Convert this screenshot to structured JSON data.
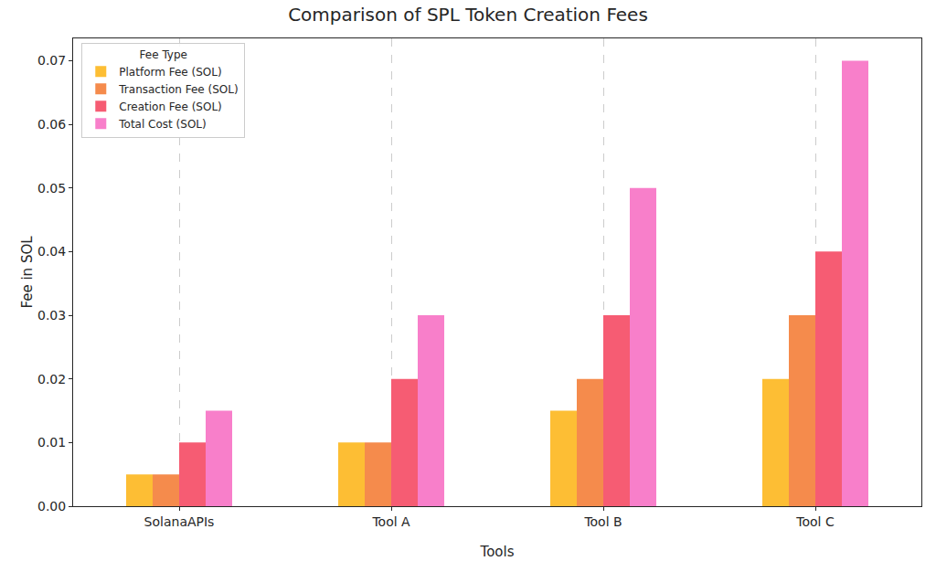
{
  "chart_data": {
    "type": "bar",
    "title": "Comparison of SPL Token Creation Fees",
    "x_label": "Tools",
    "y_label": "Fee in SOL",
    "legend_title": "Fee Type",
    "categories": [
      "SolanaAPIs",
      "Tool A",
      "Tool B",
      "Tool C"
    ],
    "series": [
      {
        "name": "Platform Fee (SOL)",
        "color": "#FDBE34",
        "values": [
          0.005,
          0.01,
          0.015,
          0.02
        ]
      },
      {
        "name": "Transaction Fee (SOL)",
        "color": "#F58B4C",
        "values": [
          0.005,
          0.01,
          0.02,
          0.03
        ]
      },
      {
        "name": "Creation Fee (SOL)",
        "color": "#F65C73",
        "values": [
          0.01,
          0.02,
          0.03,
          0.04
        ]
      },
      {
        "name": "Total Cost (SOL)",
        "color": "#F87FCA",
        "values": [
          0.015,
          0.03,
          0.05,
          0.07
        ]
      }
    ],
    "ylim": [
      0,
      0.0735
    ],
    "yticks": [
      {
        "value": 0,
        "label": "0.00"
      },
      {
        "value": 0.01,
        "label": "0.01"
      },
      {
        "value": 0.02,
        "label": "0.02"
      },
      {
        "value": 0.03,
        "label": "0.03"
      },
      {
        "value": 0.04,
        "label": "0.04"
      },
      {
        "value": 0.05,
        "label": "0.05"
      },
      {
        "value": 0.06,
        "label": "0.06"
      },
      {
        "value": 0.07,
        "label": "0.07"
      }
    ],
    "grid": "x",
    "legend": "upper left"
  }
}
